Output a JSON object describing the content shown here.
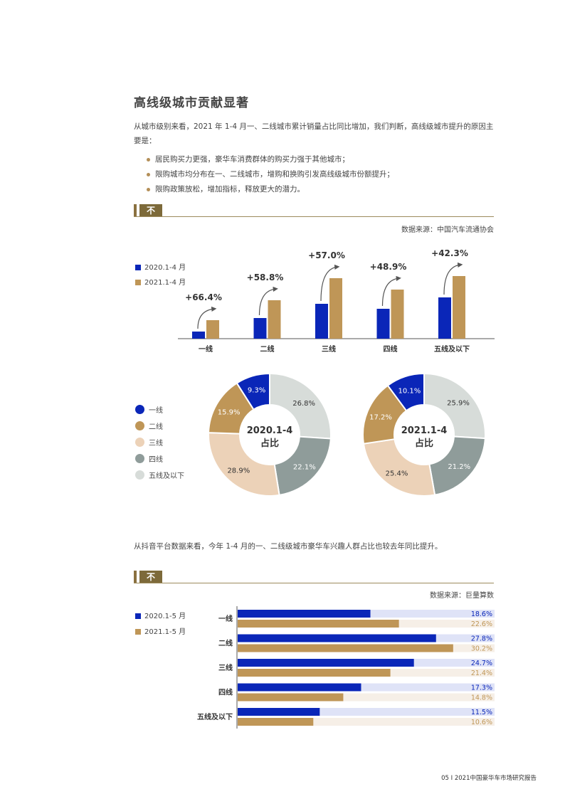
{
  "heading": "高线级城市贡献显著",
  "intro_paragraph": "从城市级别来看，2021 年 1-4 月一、二线城市累计销量占比同比增加，我们判断，高线级城市提升的原因主要是：",
  "bullets": [
    "居民购买力更强，豪华车消费群体的购买力强于其他城市；",
    "限购城市均分布在一、二线城市，增购和换购引发高线级城市份额提升；",
    "限购政策放松，增加指标，释放更大的潜力。"
  ],
  "colors": {
    "blue": "#0a26b8",
    "gold": "#bf9657",
    "tan": "#ecd2b8",
    "gray": "#8f9c9a",
    "light_gray": "#d7dcd9",
    "light_blue_track": "#dfe3f7",
    "light_gold_track": "#f6efe7",
    "section": "#7d6a3a"
  },
  "section1": {
    "title": "不同城市级别销量占比",
    "source": "数据来源：中国汽车流通协会"
  },
  "section2": {
    "paragraph": "从抖音平台数据来看，今年 1-4 月的一、二线级城市豪华车兴趣人群占比也较去年同比提升。",
    "title": "不同城市级别兴趣人群占比",
    "source": "数据来源：巨量算数"
  },
  "footer": "05 I 2021中国豪华车市场研究报告",
  "chart_data": [
    {
      "type": "bar",
      "categories": [
        "一线",
        "二线",
        "三线",
        "四线",
        "五线及以下"
      ],
      "series": [
        {
          "name": "2020.1-4 月",
          "values": [
            10,
            29,
            49,
            42,
            58
          ]
        },
        {
          "name": "2021.1-4 月",
          "values": [
            26,
            54,
            85,
            69,
            88
          ]
        }
      ],
      "annotations": [
        "+66.4%",
        "+58.8%",
        "+57.0%",
        "+48.9%",
        "+42.3%"
      ],
      "ylim": [
        0,
        100
      ]
    },
    {
      "type": "pie",
      "center_label": [
        "2020.1-4",
        "占比"
      ],
      "categories": [
        "一线",
        "二线",
        "三线",
        "四线",
        "五线及以下"
      ],
      "values": [
        9.3,
        15.9,
        28.9,
        22.1,
        26.8
      ],
      "labels": [
        "9.3%",
        "15.9%",
        "28.9%",
        "22.1%",
        "26.8%"
      ]
    },
    {
      "type": "pie",
      "center_label": [
        "2021.1-4",
        "占比"
      ],
      "categories": [
        "一线",
        "二线",
        "三线",
        "四线",
        "五线及以下"
      ],
      "values": [
        10.1,
        17.2,
        25.4,
        21.2,
        25.9
      ],
      "labels": [
        "10.1%",
        "17.2%",
        "25.4%",
        "21.2%",
        "25.9%"
      ]
    },
    {
      "type": "bar",
      "orientation": "horizontal",
      "categories": [
        "一线",
        "二线",
        "三线",
        "四线",
        "五线及以下"
      ],
      "series": [
        {
          "name": "2020.1-5 月",
          "values": [
            18.6,
            27.8,
            24.7,
            17.3,
            11.5
          ],
          "labels": [
            "18.6%",
            "27.8%",
            "24.7%",
            "17.3%",
            "11.5%"
          ]
        },
        {
          "name": "2021.1-5 月",
          "values": [
            22.6,
            30.2,
            21.4,
            14.8,
            10.6
          ],
          "labels": [
            "22.6%",
            "30.2%",
            "21.4%",
            "14.8%",
            "10.6%"
          ]
        }
      ],
      "xlim": [
        0,
        36
      ]
    }
  ]
}
